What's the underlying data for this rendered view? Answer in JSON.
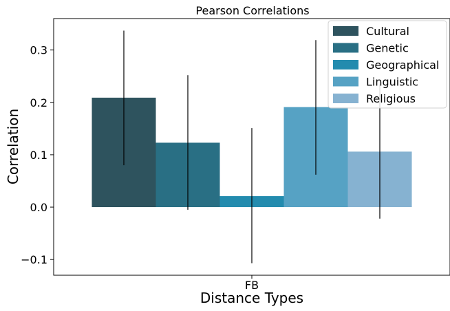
{
  "chart_data": {
    "type": "bar",
    "title": "Pearson Correlations",
    "xlabel": "Distance Types",
    "ylabel": "Correlation",
    "categories": [
      "FB"
    ],
    "ylim": [
      -0.13,
      0.36
    ],
    "yticks": [
      {
        "value": -0.1,
        "label": "−0.1"
      },
      {
        "value": 0.0,
        "label": "0.0"
      },
      {
        "value": 0.1,
        "label": "0.1"
      },
      {
        "value": 0.2,
        "label": "0.2"
      },
      {
        "value": 0.3,
        "label": "0.3"
      }
    ],
    "grid": false,
    "legend_position": "top-right",
    "series": [
      {
        "name": "Cultural",
        "color": "#2e535e",
        "values": [
          0.209
        ],
        "error_low": [
          0.08
        ],
        "error_high": [
          0.337
        ]
      },
      {
        "name": "Genetic",
        "color": "#296f84",
        "values": [
          0.123
        ],
        "error_low": [
          -0.005
        ],
        "error_high": [
          0.252
        ]
      },
      {
        "name": "Geographical",
        "color": "#238bae",
        "values": [
          0.021
        ],
        "error_low": [
          -0.107
        ],
        "error_high": [
          0.151
        ]
      },
      {
        "name": "Linguistic",
        "color": "#56a2c4",
        "values": [
          0.191
        ],
        "error_low": [
          0.062
        ],
        "error_high": [
          0.319
        ]
      },
      {
        "name": "Religious",
        "color": "#86b2d1",
        "values": [
          0.106
        ],
        "error_low": [
          -0.022
        ],
        "error_high": [
          0.234
        ]
      }
    ]
  }
}
